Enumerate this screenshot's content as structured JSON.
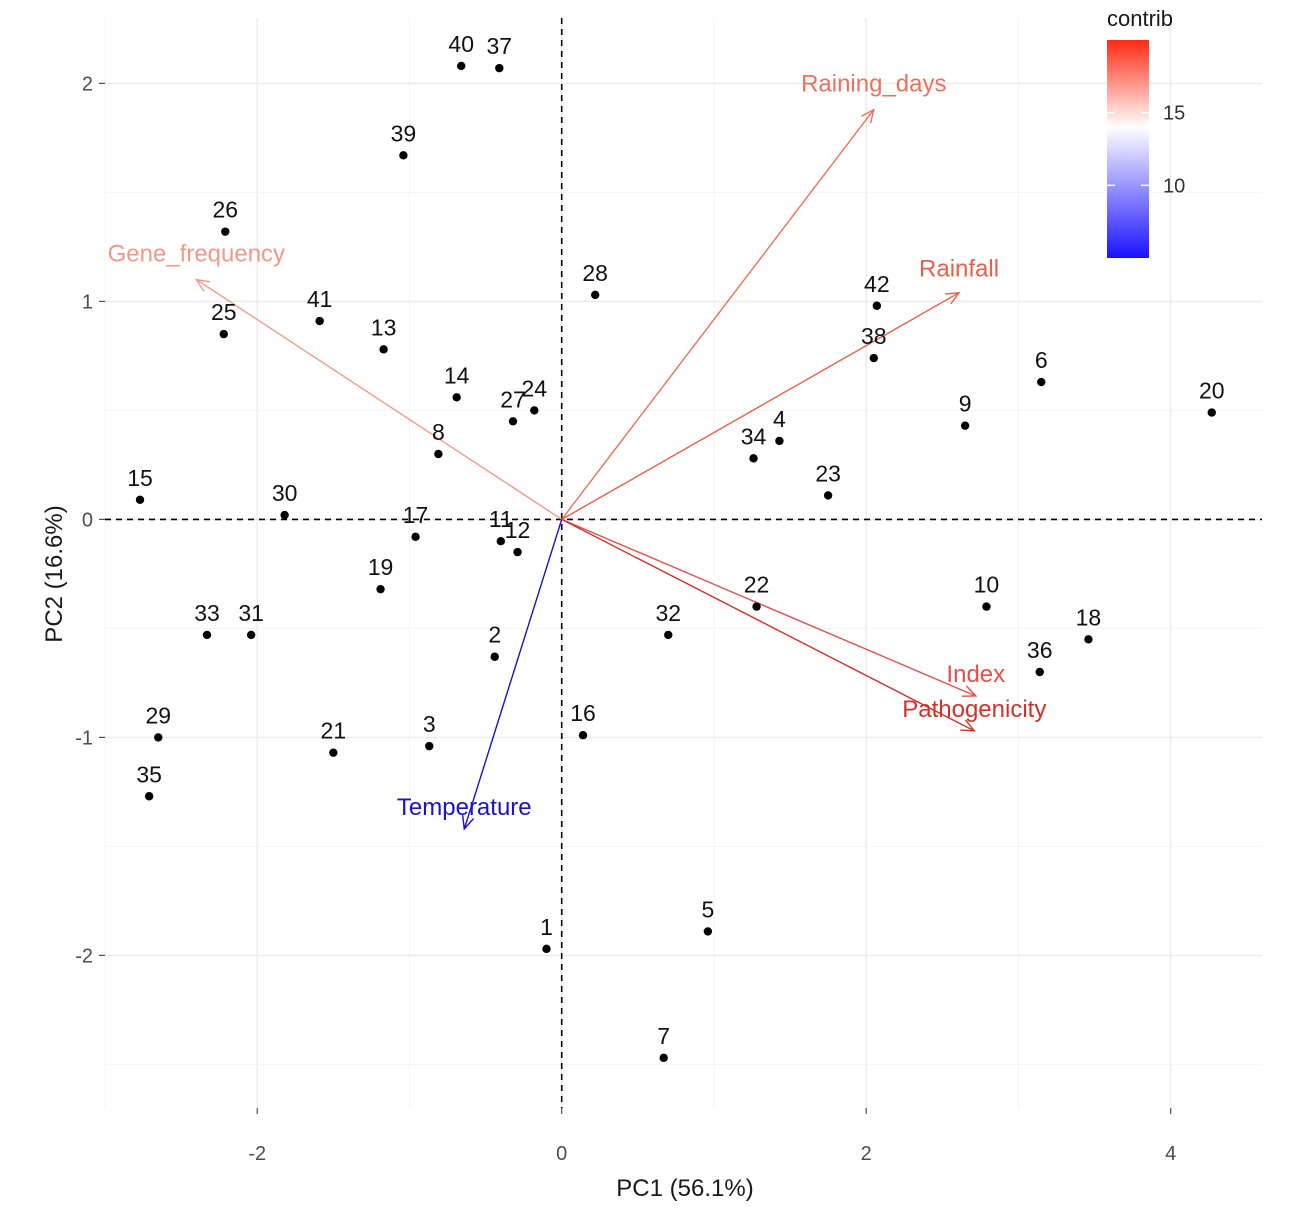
{
  "chart_data": {
    "type": "scatter",
    "subtype": "pca-biplot",
    "xlabel": "PC1 (56.1%)",
    "ylabel": "PC2 (16.6%)",
    "xlim": [
      -3.0,
      4.6
    ],
    "ylim": [
      -2.7,
      2.3
    ],
    "x_ticks": [
      -2,
      0,
      2,
      4
    ],
    "x_tick_labels": [
      "-2",
      "0",
      "2",
      "4"
    ],
    "y_ticks": [
      -2,
      -1,
      0,
      1,
      2
    ],
    "y_tick_labels": [
      "-2",
      "-1",
      "0",
      "1",
      "2"
    ],
    "grid": true,
    "reference_lines": {
      "x": 0,
      "y": 0,
      "style": "dashed"
    },
    "points": [
      {
        "label": "40",
        "x": -0.66,
        "y": 2.08
      },
      {
        "label": "37",
        "x": -0.41,
        "y": 2.07
      },
      {
        "label": "39",
        "x": -1.04,
        "y": 1.67
      },
      {
        "label": "26",
        "x": -2.21,
        "y": 1.32
      },
      {
        "label": "25",
        "x": -2.22,
        "y": 0.85
      },
      {
        "label": "41",
        "x": -1.59,
        "y": 0.91
      },
      {
        "label": "13",
        "x": -1.17,
        "y": 0.78
      },
      {
        "label": "14",
        "x": -0.69,
        "y": 0.56
      },
      {
        "label": "8",
        "x": -0.81,
        "y": 0.3
      },
      {
        "label": "27",
        "x": -0.32,
        "y": 0.45
      },
      {
        "label": "24",
        "x": -0.18,
        "y": 0.5
      },
      {
        "label": "28",
        "x": 0.22,
        "y": 1.03
      },
      {
        "label": "15",
        "x": -2.77,
        "y": 0.09
      },
      {
        "label": "30",
        "x": -1.82,
        "y": 0.02
      },
      {
        "label": "17",
        "x": -0.96,
        "y": -0.08
      },
      {
        "label": "11",
        "x": -0.4,
        "y": -0.1
      },
      {
        "label": "12",
        "x": -0.29,
        "y": -0.15
      },
      {
        "label": "19",
        "x": -1.19,
        "y": -0.32
      },
      {
        "label": "33",
        "x": -2.33,
        "y": -0.53
      },
      {
        "label": "31",
        "x": -2.04,
        "y": -0.53
      },
      {
        "label": "2",
        "x": -0.44,
        "y": -0.63
      },
      {
        "label": "29",
        "x": -2.65,
        "y": -1.0
      },
      {
        "label": "35",
        "x": -2.71,
        "y": -1.27
      },
      {
        "label": "21",
        "x": -1.5,
        "y": -1.07
      },
      {
        "label": "3",
        "x": -0.87,
        "y": -1.04
      },
      {
        "label": "16",
        "x": 0.14,
        "y": -0.99
      },
      {
        "label": "1",
        "x": -0.1,
        "y": -1.97
      },
      {
        "label": "5",
        "x": 0.96,
        "y": -1.89
      },
      {
        "label": "7",
        "x": 0.67,
        "y": -2.47
      },
      {
        "label": "32",
        "x": 0.7,
        "y": -0.53
      },
      {
        "label": "22",
        "x": 1.28,
        "y": -0.4
      },
      {
        "label": "34",
        "x": 1.26,
        "y": 0.28
      },
      {
        "label": "4",
        "x": 1.43,
        "y": 0.36
      },
      {
        "label": "23",
        "x": 1.75,
        "y": 0.11
      },
      {
        "label": "42",
        "x": 2.07,
        "y": 0.98
      },
      {
        "label": "38",
        "x": 2.05,
        "y": 0.74
      },
      {
        "label": "9",
        "x": 2.65,
        "y": 0.43
      },
      {
        "label": "6",
        "x": 3.15,
        "y": 0.63
      },
      {
        "label": "20",
        "x": 4.27,
        "y": 0.49
      },
      {
        "label": "10",
        "x": 2.79,
        "y": -0.4
      },
      {
        "label": "18",
        "x": 3.46,
        "y": -0.55
      },
      {
        "label": "36",
        "x": 3.14,
        "y": -0.7
      }
    ],
    "variables": [
      {
        "name": "Raining_days",
        "x": 2.05,
        "y": 1.88,
        "contrib": 16.8,
        "color": "#e8725c"
      },
      {
        "name": "Rainfall",
        "x": 2.61,
        "y": 1.04,
        "contrib": 17.5,
        "color": "#e8604a"
      },
      {
        "name": "Gene_frequency",
        "x": -2.4,
        "y": 1.1,
        "contrib": 15.6,
        "color": "#f09a86"
      },
      {
        "name": "Index",
        "x": 2.72,
        "y": -0.81,
        "contrib": 18.2,
        "color": "#e2504a"
      },
      {
        "name": "Pathogenicity",
        "x": 2.71,
        "y": -0.97,
        "contrib": 19.3,
        "color": "#d2322a"
      },
      {
        "name": "Temperature",
        "x": -0.64,
        "y": -1.42,
        "contrib": 5.2,
        "color": "#1a12c8"
      }
    ],
    "legend": {
      "title": "contrib",
      "position": "top-right",
      "min": 5.0,
      "max": 20.0,
      "mid": 14.0,
      "ticks": [
        10,
        15
      ],
      "tick_labels": [
        "10",
        "15"
      ],
      "colors": {
        "low": "#1a12ff",
        "mid": "#ffffff",
        "high": "#ff2a12"
      }
    }
  }
}
